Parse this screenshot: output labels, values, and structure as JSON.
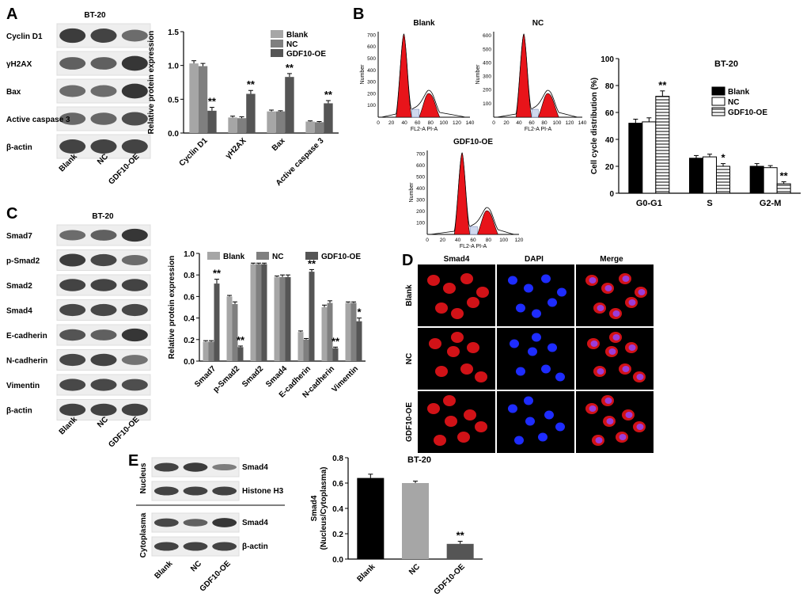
{
  "panel_letters": {
    "a": "A",
    "b": "B",
    "c": "C",
    "d": "D",
    "e": "E"
  },
  "colors": {
    "blank": "#a6a6a6",
    "nc": "#7f7f7f",
    "gdf": "#555555",
    "blot_bg": "#f2f2f2",
    "band": "#262626",
    "red": "#e8141a",
    "blue": "#1e2cff",
    "purple": "#9b3dd9"
  },
  "panel_a": {
    "blot_title": "BT-20",
    "rows": [
      "Cyclin D1",
      "γH2AX",
      "Bax",
      "Active caspase 3",
      "β-actin"
    ],
    "lanes": [
      "Blank",
      "NC",
      "GDF10-OE"
    ]
  },
  "panel_c": {
    "blot_title": "BT-20",
    "rows": [
      "Smad7",
      "p-Smad2",
      "Smad2",
      "Smad4",
      "E-cadherin",
      "N-cadherin",
      "Vimentin",
      "β-actin"
    ],
    "lanes": [
      "Blank",
      "NC",
      "GDF10-OE"
    ]
  },
  "panel_b": {
    "histograms": [
      {
        "title": "Blank",
        "ylabel": "Number",
        "xlabel": "FL2-A PI-A",
        "xticks": [
          "0",
          "20",
          "40",
          "60",
          "80",
          "100",
          "120",
          "140"
        ],
        "yticks": [
          "100",
          "200",
          "300",
          "400",
          "500",
          "600",
          "700"
        ]
      },
      {
        "title": "NC",
        "ylabel": "Number",
        "xlabel": "FL2-A PI-A",
        "xticks": [
          "0",
          "20",
          "40",
          "60",
          "80",
          "100",
          "120",
          "140"
        ],
        "yticks": [
          "100",
          "200",
          "300",
          "400",
          "500",
          "600"
        ]
      },
      {
        "title": "GDF10-OE",
        "ylabel": "Number",
        "xlabel": "FL2-A PI-A",
        "xticks": [
          "0",
          "20",
          "40",
          "60",
          "80",
          "100",
          "120"
        ],
        "yticks": [
          "100",
          "200",
          "300",
          "400",
          "500",
          "600",
          "700"
        ]
      }
    ]
  },
  "panel_d": {
    "col_headers": [
      "Smad4",
      "DAPI",
      "Merge"
    ],
    "row_labels": [
      "Blank",
      "NC",
      "GDF10-OE"
    ]
  },
  "panel_e": {
    "nucleus_label": "Nucleus",
    "cytoplasma_label": "Cytoplasma",
    "rows": [
      "Smad4",
      "Histone H3",
      "Smad4",
      "β-actin"
    ],
    "lanes": [
      "Blank",
      "NC",
      "GDF10-OE"
    ]
  },
  "chart_data": [
    {
      "id": "A-bar",
      "type": "bar",
      "ylabel": "Relative protein expression",
      "ylim": [
        0,
        1.5
      ],
      "yticks": [
        "0.0",
        "0.5",
        "1.0",
        "1.5"
      ],
      "categories": [
        "Cyclin D1",
        "γH2AX",
        "Bax",
        "Active caspase 3"
      ],
      "series": [
        {
          "name": "Blank",
          "values": [
            1.03,
            0.23,
            0.32,
            0.17
          ],
          "errors": [
            0.04,
            0.02,
            0.02,
            0.01
          ]
        },
        {
          "name": "NC",
          "values": [
            0.99,
            0.22,
            0.32,
            0.16
          ],
          "errors": [
            0.04,
            0.02,
            0.01,
            0.01
          ]
        },
        {
          "name": "GDF10-OE",
          "values": [
            0.33,
            0.58,
            0.83,
            0.44
          ],
          "errors": [
            0.05,
            0.05,
            0.05,
            0.04
          ]
        }
      ],
      "annotations": [
        "**",
        "**",
        "**",
        "**"
      ],
      "legend": "top-right"
    },
    {
      "id": "B-bar",
      "type": "bar",
      "title": "BT-20",
      "ylabel": "Cell cycle distribution (%)",
      "ylim": [
        0,
        100
      ],
      "yticks": [
        "0",
        "20",
        "40",
        "60",
        "80",
        "100"
      ],
      "categories": [
        "G0-G1",
        "S",
        "G2-M"
      ],
      "series": [
        {
          "name": "Blank",
          "values": [
            52,
            26,
            20
          ],
          "errors": [
            3,
            2,
            2
          ]
        },
        {
          "name": "NC",
          "values": [
            53,
            27,
            19
          ],
          "errors": [
            3,
            2,
            1.5
          ]
        },
        {
          "name": "GDF10-OE",
          "values": [
            72,
            20,
            7
          ],
          "errors": [
            4,
            2,
            1.5
          ]
        }
      ],
      "annotations": [
        "**",
        "*",
        "**"
      ],
      "legend": "top-right"
    },
    {
      "id": "C-bar",
      "type": "bar",
      "ylabel": "Relative protein expression",
      "ylim": [
        0,
        1.0
      ],
      "yticks": [
        "0.0",
        "0.2",
        "0.4",
        "0.6",
        "0.8",
        "1.0"
      ],
      "categories": [
        "Smad7",
        "p-Smad2",
        "Smad2",
        "Smad4",
        "E-cadherin",
        "N-cadherin",
        "Vimentin"
      ],
      "series": [
        {
          "name": "Blank",
          "values": [
            0.18,
            0.6,
            0.9,
            0.78,
            0.27,
            0.5,
            0.54
          ],
          "errors": [
            0.01,
            0.01,
            0.01,
            0.01,
            0.01,
            0.02,
            0.01
          ]
        },
        {
          "name": "NC",
          "values": [
            0.18,
            0.53,
            0.9,
            0.78,
            0.2,
            0.54,
            0.54
          ],
          "errors": [
            0.01,
            0.02,
            0.01,
            0.02,
            0.01,
            0.02,
            0.01
          ]
        },
        {
          "name": "GDF10-OE",
          "values": [
            0.72,
            0.13,
            0.9,
            0.78,
            0.83,
            0.12,
            0.37
          ],
          "errors": [
            0.04,
            0.01,
            0.01,
            0.02,
            0.02,
            0.01,
            0.03
          ]
        }
      ],
      "annotations": [
        "**",
        "**",
        "",
        "",
        "**",
        "**",
        "*"
      ],
      "legend": "top"
    },
    {
      "id": "E-bar",
      "type": "bar",
      "title": "BT-20",
      "ylabel": "Smad4\n(Nucleus/Cytoplasma)",
      "ylim": [
        0,
        0.8
      ],
      "yticks": [
        "0.0",
        "0.2",
        "0.4",
        "0.6",
        "0.8"
      ],
      "categories": [
        "Blank",
        "NC",
        "GDF10-OE"
      ],
      "values": [
        0.64,
        0.6,
        0.12
      ],
      "errors": [
        0.03,
        0.015,
        0.02
      ],
      "bar_colors": [
        "#000000",
        "#a6a6a6",
        "#555555"
      ],
      "annotations": [
        "",
        "",
        "**"
      ]
    }
  ]
}
